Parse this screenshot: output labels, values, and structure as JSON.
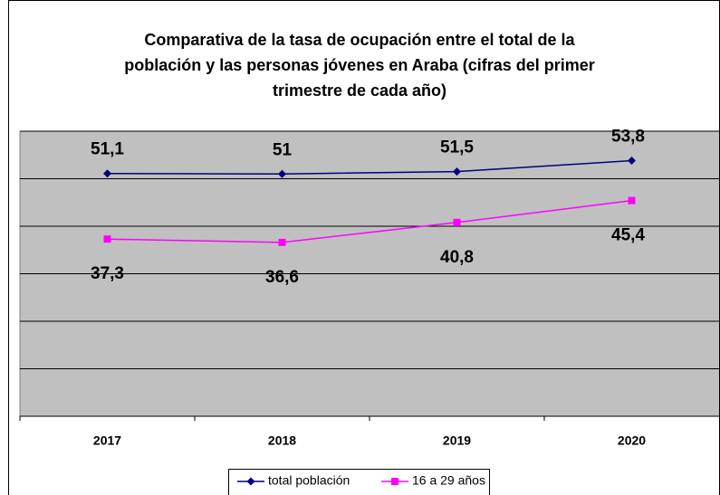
{
  "chart_data": {
    "type": "line",
    "title": [
      "Comparativa de la tasa de ocupación entre el total de la",
      "población y las personas jóvenes en Araba (cifras del primer",
      "trimestre de cada año)"
    ],
    "categories": [
      "2017",
      "2018",
      "2019",
      "2020"
    ],
    "series": [
      {
        "name": "total población",
        "color": "#000080",
        "marker": "diamond",
        "values": [
          51.1,
          51,
          51.5,
          53.8
        ],
        "value_labels": [
          "51,1",
          "51",
          "51,5",
          "53,8"
        ]
      },
      {
        "name": "16 a 29 años",
        "color": "#ff00ff",
        "marker": "square",
        "values": [
          37.3,
          36.6,
          40.8,
          45.4
        ],
        "value_labels": [
          "37,3",
          "36,6",
          "40,8",
          "45,4"
        ]
      }
    ],
    "ylim": [
      0,
      60
    ],
    "yticks": [
      0,
      10,
      20,
      30,
      40,
      50,
      60
    ],
    "grid": true,
    "legend": "bottom"
  }
}
